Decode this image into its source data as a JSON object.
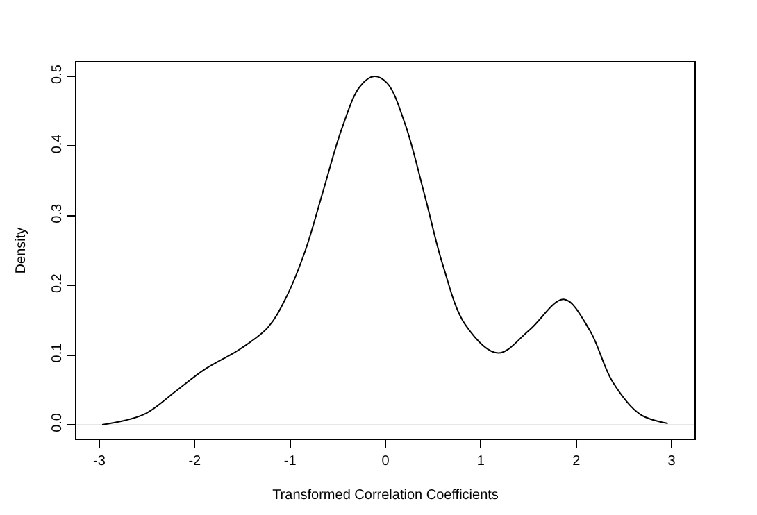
{
  "chart_data": {
    "type": "line",
    "xlabel": "Transformed Correlation Coefficients",
    "ylabel": "Density",
    "x": [
      -2.97,
      -2.53,
      -2.19,
      -1.9,
      -1.52,
      -1.23,
      -1.04,
      -0.84,
      -0.65,
      -0.46,
      -0.27,
      -0.12,
      0.02,
      0.21,
      0.41,
      0.6,
      0.84,
      1.18,
      1.51,
      1.87,
      2.14,
      2.38,
      2.67,
      2.96
    ],
    "series": [
      {
        "color": "#000000",
        "values": [
          0.0,
          0.015,
          0.049,
          0.079,
          0.109,
          0.14,
          0.183,
          0.25,
          0.337,
          0.424,
          0.485,
          0.5,
          0.49,
          0.43,
          0.33,
          0.23,
          0.143,
          0.103,
          0.136,
          0.18,
          0.136,
          0.062,
          0.015,
          0.002
        ]
      }
    ],
    "xlim": [
      -3.24,
      3.24
    ],
    "ylim": [
      -0.02,
      0.52
    ],
    "xticks": [
      -3,
      -2,
      -1,
      0,
      1,
      2,
      3
    ],
    "yticks": [
      {
        "value": 0,
        "label": "0.0"
      },
      0.1,
      0.2,
      0.3,
      0.4,
      0.5
    ],
    "ref_lines": [
      {
        "axis": "y",
        "value": 0,
        "color": "#e6e6e6"
      }
    ],
    "grid": false,
    "legend": false,
    "line_style": "solid",
    "marker": "none"
  }
}
